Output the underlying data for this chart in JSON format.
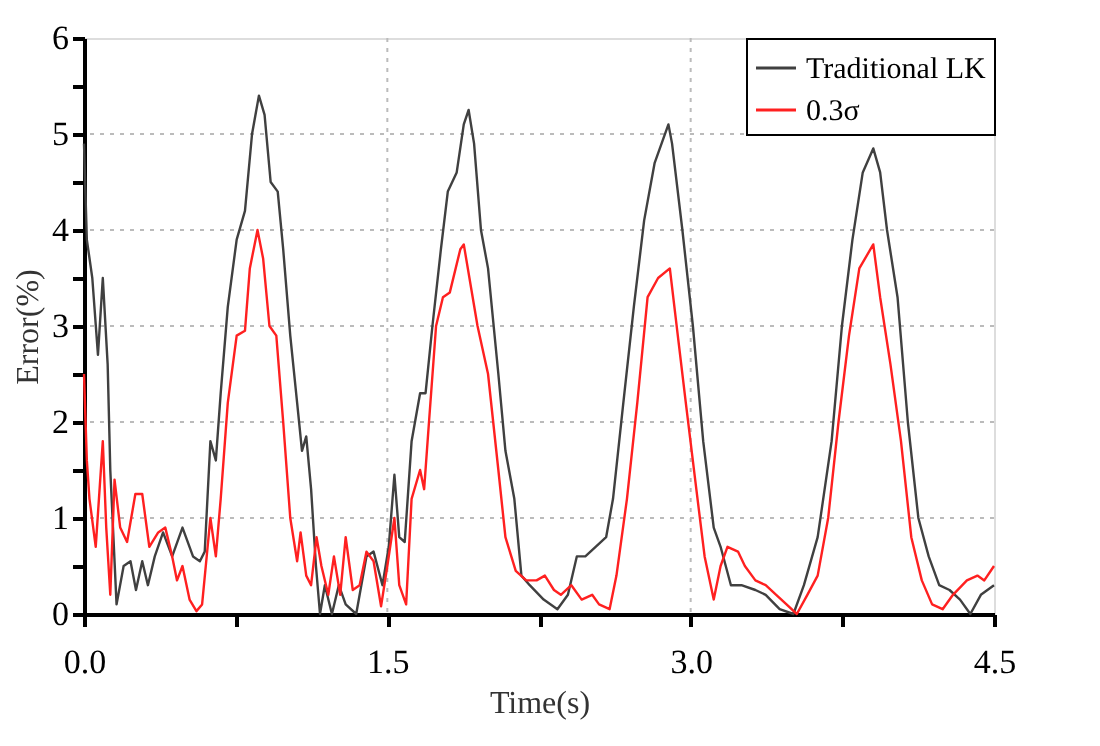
{
  "chart_data": {
    "type": "line",
    "xlabel": "Time(s)",
    "ylabel": "Error(%)",
    "xlim": [
      0,
      4.5
    ],
    "ylim": [
      0,
      6
    ],
    "xticks": [
      {
        "value": 0,
        "label": "0.0"
      },
      {
        "value": 0.75,
        "label": null
      },
      {
        "value": 1.5,
        "label": "1.5"
      },
      {
        "value": 2.25,
        "label": null
      },
      {
        "value": 3,
        "label": "3.0"
      },
      {
        "value": 3.75,
        "label": null
      },
      {
        "value": 4.5,
        "label": "4.5"
      }
    ],
    "yticks": [
      0,
      {
        "value": 0.5,
        "label": null
      },
      1,
      {
        "value": 1.5,
        "label": null
      },
      2,
      {
        "value": 2.5,
        "label": null
      },
      3,
      {
        "value": 3.5,
        "label": null
      },
      4,
      {
        "value": 4.5,
        "label": null
      },
      5,
      {
        "value": 5.5,
        "label": null
      },
      6
    ],
    "grid": true,
    "legend": "top right",
    "line_style": "solid",
    "marker": "none",
    "series": [
      {
        "name": "Traditional LK",
        "color": "#404040",
        "x": [
          0.0,
          0.014,
          0.041,
          0.069,
          0.093,
          0.117,
          0.13,
          0.161,
          0.196,
          0.23,
          0.257,
          0.288,
          0.316,
          0.35,
          0.391,
          0.436,
          0.487,
          0.539,
          0.573,
          0.597,
          0.625,
          0.652,
          0.676,
          0.711,
          0.755,
          0.796,
          0.831,
          0.865,
          0.893,
          0.923,
          0.958,
          0.985,
          1.02,
          1.054,
          1.078,
          1.099,
          1.123,
          1.147,
          1.167,
          1.191,
          1.226,
          1.26,
          1.294,
          1.346,
          1.397,
          1.432,
          1.476,
          1.507,
          1.535,
          1.559,
          1.586,
          1.62,
          1.662,
          1.689,
          1.723,
          1.765,
          1.799,
          1.843,
          1.878,
          1.902,
          1.929,
          1.963,
          1.998,
          2.049,
          2.084,
          2.128,
          2.163,
          2.204,
          2.273,
          2.341,
          2.393,
          2.437,
          2.479,
          2.53,
          2.582,
          2.616,
          2.667,
          2.719,
          2.77,
          2.822,
          2.89,
          2.908,
          2.959,
          3.011,
          3.062,
          3.114,
          3.148,
          3.199,
          3.251,
          3.32,
          3.371,
          3.44,
          3.508,
          3.56,
          3.628,
          3.697,
          3.748,
          3.8,
          3.851,
          3.903,
          3.937,
          3.971,
          4.023,
          4.074,
          4.126,
          4.177,
          4.229,
          4.28,
          4.332,
          4.383,
          4.435,
          4.5
        ],
        "values": [
          4.9,
          3.9,
          3.5,
          2.7,
          3.5,
          2.6,
          1.5,
          0.1,
          0.5,
          0.55,
          0.25,
          0.55,
          0.3,
          0.6,
          0.85,
          0.6,
          0.9,
          0.6,
          0.55,
          0.65,
          1.8,
          1.6,
          2.3,
          3.2,
          3.9,
          4.2,
          5.0,
          5.4,
          5.2,
          4.5,
          4.4,
          3.8,
          2.9,
          2.2,
          1.7,
          1.85,
          1.3,
          0.5,
          0.0,
          0.3,
          0.0,
          0.3,
          0.1,
          0.0,
          0.6,
          0.65,
          0.3,
          0.7,
          1.45,
          0.8,
          0.75,
          1.8,
          2.3,
          2.3,
          3.0,
          3.8,
          4.4,
          4.6,
          5.1,
          5.25,
          4.9,
          4.0,
          3.6,
          2.5,
          1.7,
          1.2,
          0.4,
          0.3,
          0.15,
          0.05,
          0.2,
          0.6,
          0.6,
          0.7,
          0.8,
          1.2,
          2.2,
          3.2,
          4.1,
          4.7,
          5.1,
          4.9,
          4.0,
          3.0,
          1.8,
          0.9,
          0.7,
          0.3,
          0.3,
          0.25,
          0.2,
          0.05,
          0.0,
          0.3,
          0.8,
          1.8,
          3.0,
          3.9,
          4.6,
          4.85,
          4.6,
          4.0,
          3.3,
          2.0,
          1.0,
          0.6,
          0.3,
          0.25,
          0.15,
          0.0,
          0.2,
          0.3
        ]
      },
      {
        "name": "0.3σ",
        "color": "#ff2020",
        "x": [
          0.0,
          0.014,
          0.027,
          0.058,
          0.093,
          0.11,
          0.13,
          0.151,
          0.179,
          0.213,
          0.254,
          0.288,
          0.323,
          0.367,
          0.402,
          0.436,
          0.46,
          0.487,
          0.522,
          0.556,
          0.584,
          0.625,
          0.652,
          0.676,
          0.711,
          0.755,
          0.796,
          0.82,
          0.858,
          0.886,
          0.917,
          0.951,
          0.985,
          1.02,
          1.054,
          1.071,
          1.099,
          1.123,
          1.15,
          1.174,
          1.208,
          1.236,
          1.267,
          1.294,
          1.329,
          1.363,
          1.397,
          1.432,
          1.469,
          1.5,
          1.535,
          1.559,
          1.593,
          1.62,
          1.662,
          1.682,
          1.706,
          1.741,
          1.775,
          1.809,
          1.861,
          1.878,
          1.946,
          1.998,
          2.049,
          2.084,
          2.135,
          2.187,
          2.238,
          2.279,
          2.324,
          2.358,
          2.41,
          2.461,
          2.513,
          2.547,
          2.599,
          2.633,
          2.685,
          2.736,
          2.787,
          2.839,
          2.897,
          2.942,
          2.976,
          3.028,
          3.069,
          3.114,
          3.148,
          3.182,
          3.234,
          3.268,
          3.32,
          3.371,
          3.423,
          3.474,
          3.525,
          3.577,
          3.628,
          3.68,
          3.731,
          3.783,
          3.834,
          3.903,
          3.937,
          3.988,
          4.04,
          4.091,
          4.143,
          4.194,
          4.246,
          4.297,
          4.366,
          4.418,
          4.452,
          4.5
        ],
        "values": [
          2.5,
          1.6,
          1.2,
          0.7,
          1.8,
          0.9,
          0.2,
          1.4,
          0.9,
          0.75,
          1.25,
          1.25,
          0.7,
          0.85,
          0.9,
          0.6,
          0.35,
          0.5,
          0.15,
          0.03,
          0.1,
          1.0,
          0.6,
          1.2,
          2.2,
          2.9,
          2.95,
          3.6,
          4.0,
          3.7,
          3.0,
          2.9,
          2.0,
          1.0,
          0.55,
          0.85,
          0.4,
          0.3,
          0.8,
          0.5,
          0.2,
          0.6,
          0.2,
          0.8,
          0.25,
          0.3,
          0.65,
          0.55,
          0.08,
          0.5,
          1.0,
          0.3,
          0.1,
          1.2,
          1.5,
          1.3,
          2.0,
          3.0,
          3.3,
          3.35,
          3.8,
          3.85,
          3.0,
          2.5,
          1.5,
          0.8,
          0.45,
          0.35,
          0.35,
          0.4,
          0.25,
          0.2,
          0.3,
          0.15,
          0.2,
          0.1,
          0.05,
          0.4,
          1.2,
          2.2,
          3.3,
          3.5,
          3.6,
          2.8,
          2.2,
          1.3,
          0.6,
          0.15,
          0.5,
          0.7,
          0.65,
          0.5,
          0.35,
          0.3,
          0.2,
          0.1,
          0.0,
          0.2,
          0.4,
          1.0,
          2.0,
          2.9,
          3.6,
          3.85,
          3.3,
          2.6,
          1.8,
          0.8,
          0.35,
          0.1,
          0.05,
          0.2,
          0.35,
          0.4,
          0.35,
          0.5
        ]
      }
    ]
  }
}
